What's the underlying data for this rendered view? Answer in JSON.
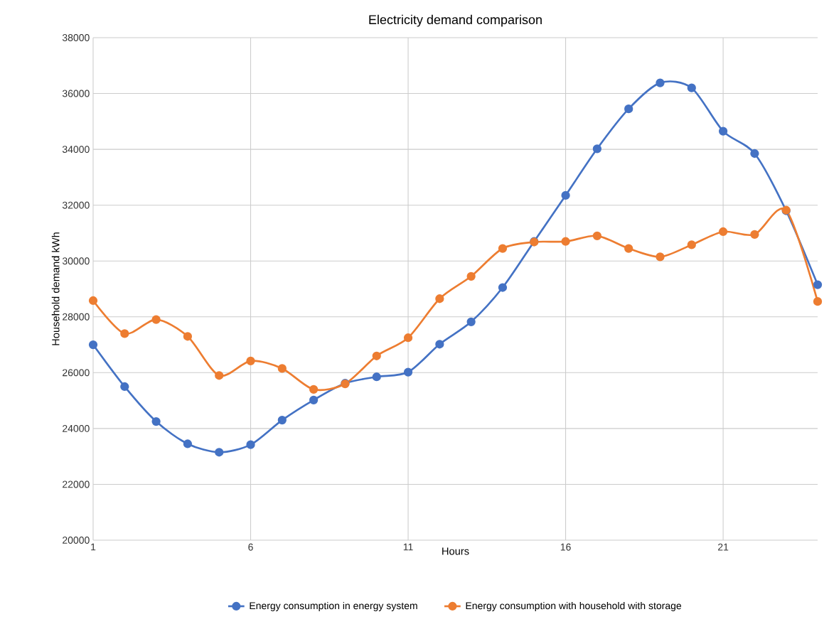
{
  "chart_data": {
    "type": "line",
    "title": "Electricity demand comparison",
    "xlabel": "Hours",
    "ylabel": "Household demand kWh",
    "x": [
      1,
      2,
      3,
      4,
      5,
      6,
      7,
      8,
      9,
      10,
      11,
      12,
      13,
      14,
      15,
      16,
      17,
      18,
      19,
      20,
      21,
      22,
      23,
      24
    ],
    "xlim": [
      1,
      24
    ],
    "xticks": [
      1,
      6,
      11,
      16,
      21
    ],
    "ylim": [
      20000,
      38000
    ],
    "yticks": [
      20000,
      22000,
      24000,
      26000,
      28000,
      30000,
      32000,
      34000,
      36000,
      38000
    ],
    "series": [
      {
        "name": "Energy consumption in energy system",
        "color": "#4472c4",
        "values": [
          27000,
          25500,
          24250,
          23450,
          23150,
          23420,
          24300,
          25020,
          25620,
          25850,
          26020,
          27020,
          27820,
          29050,
          30700,
          32350,
          34020,
          35450,
          36380,
          36200,
          34650,
          33850,
          31800,
          29150
        ]
      },
      {
        "name": "Energy consumption with household with storage",
        "color": "#ed7d31",
        "values": [
          28580,
          27400,
          27900,
          27300,
          25900,
          26420,
          26150,
          25400,
          25600,
          26600,
          27250,
          28650,
          29450,
          30450,
          30680,
          30700,
          30900,
          30450,
          30150,
          30580,
          31050,
          30950,
          31820,
          28550
        ]
      }
    ],
    "grid": true,
    "legend": "bottom",
    "marker": "circle",
    "line_style": "solid"
  }
}
